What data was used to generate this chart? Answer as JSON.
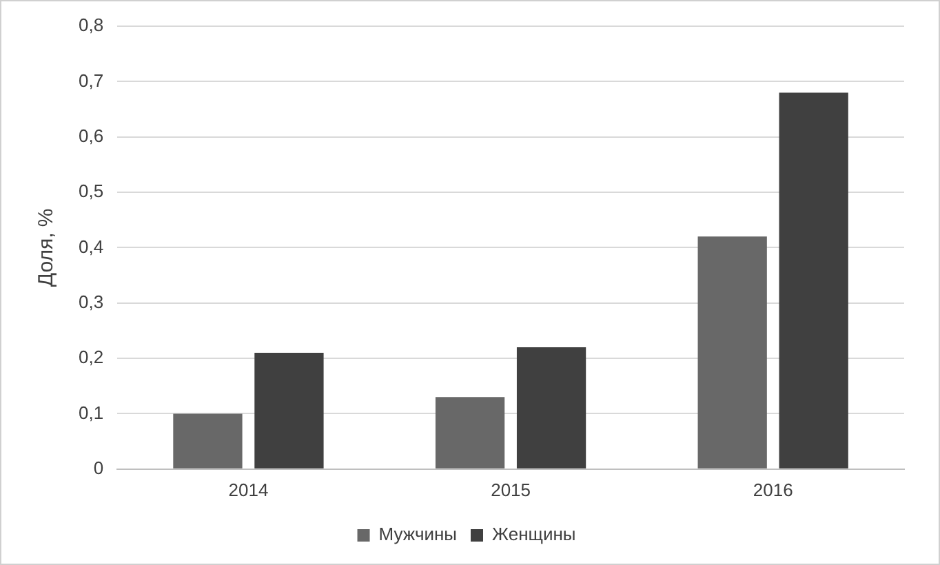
{
  "chart_data": {
    "type": "bar",
    "ylabel": "Доля, %",
    "categories": [
      "2014",
      "2015",
      "2016"
    ],
    "series": [
      {
        "name": "Мужчины",
        "color": "#686868",
        "values": [
          0.1,
          0.13,
          0.42
        ]
      },
      {
        "name": "Женщины",
        "color": "#404040",
        "values": [
          0.21,
          0.22,
          0.68
        ]
      }
    ],
    "ylim": [
      0,
      0.8
    ],
    "yticks": [
      0,
      {
        "value": 0.1,
        "label": "0,1"
      },
      {
        "value": 0.2,
        "label": "0,2"
      },
      {
        "value": 0.3,
        "label": "0,3"
      },
      {
        "value": 0.4,
        "label": "0,4"
      },
      {
        "value": 0.5,
        "label": "0,5"
      },
      {
        "value": 0.6,
        "label": "0,6"
      },
      {
        "value": 0.7,
        "label": "0,7"
      },
      {
        "value": 0.8,
        "label": "0,8"
      }
    ],
    "grid": "y",
    "legend": "bottom"
  }
}
